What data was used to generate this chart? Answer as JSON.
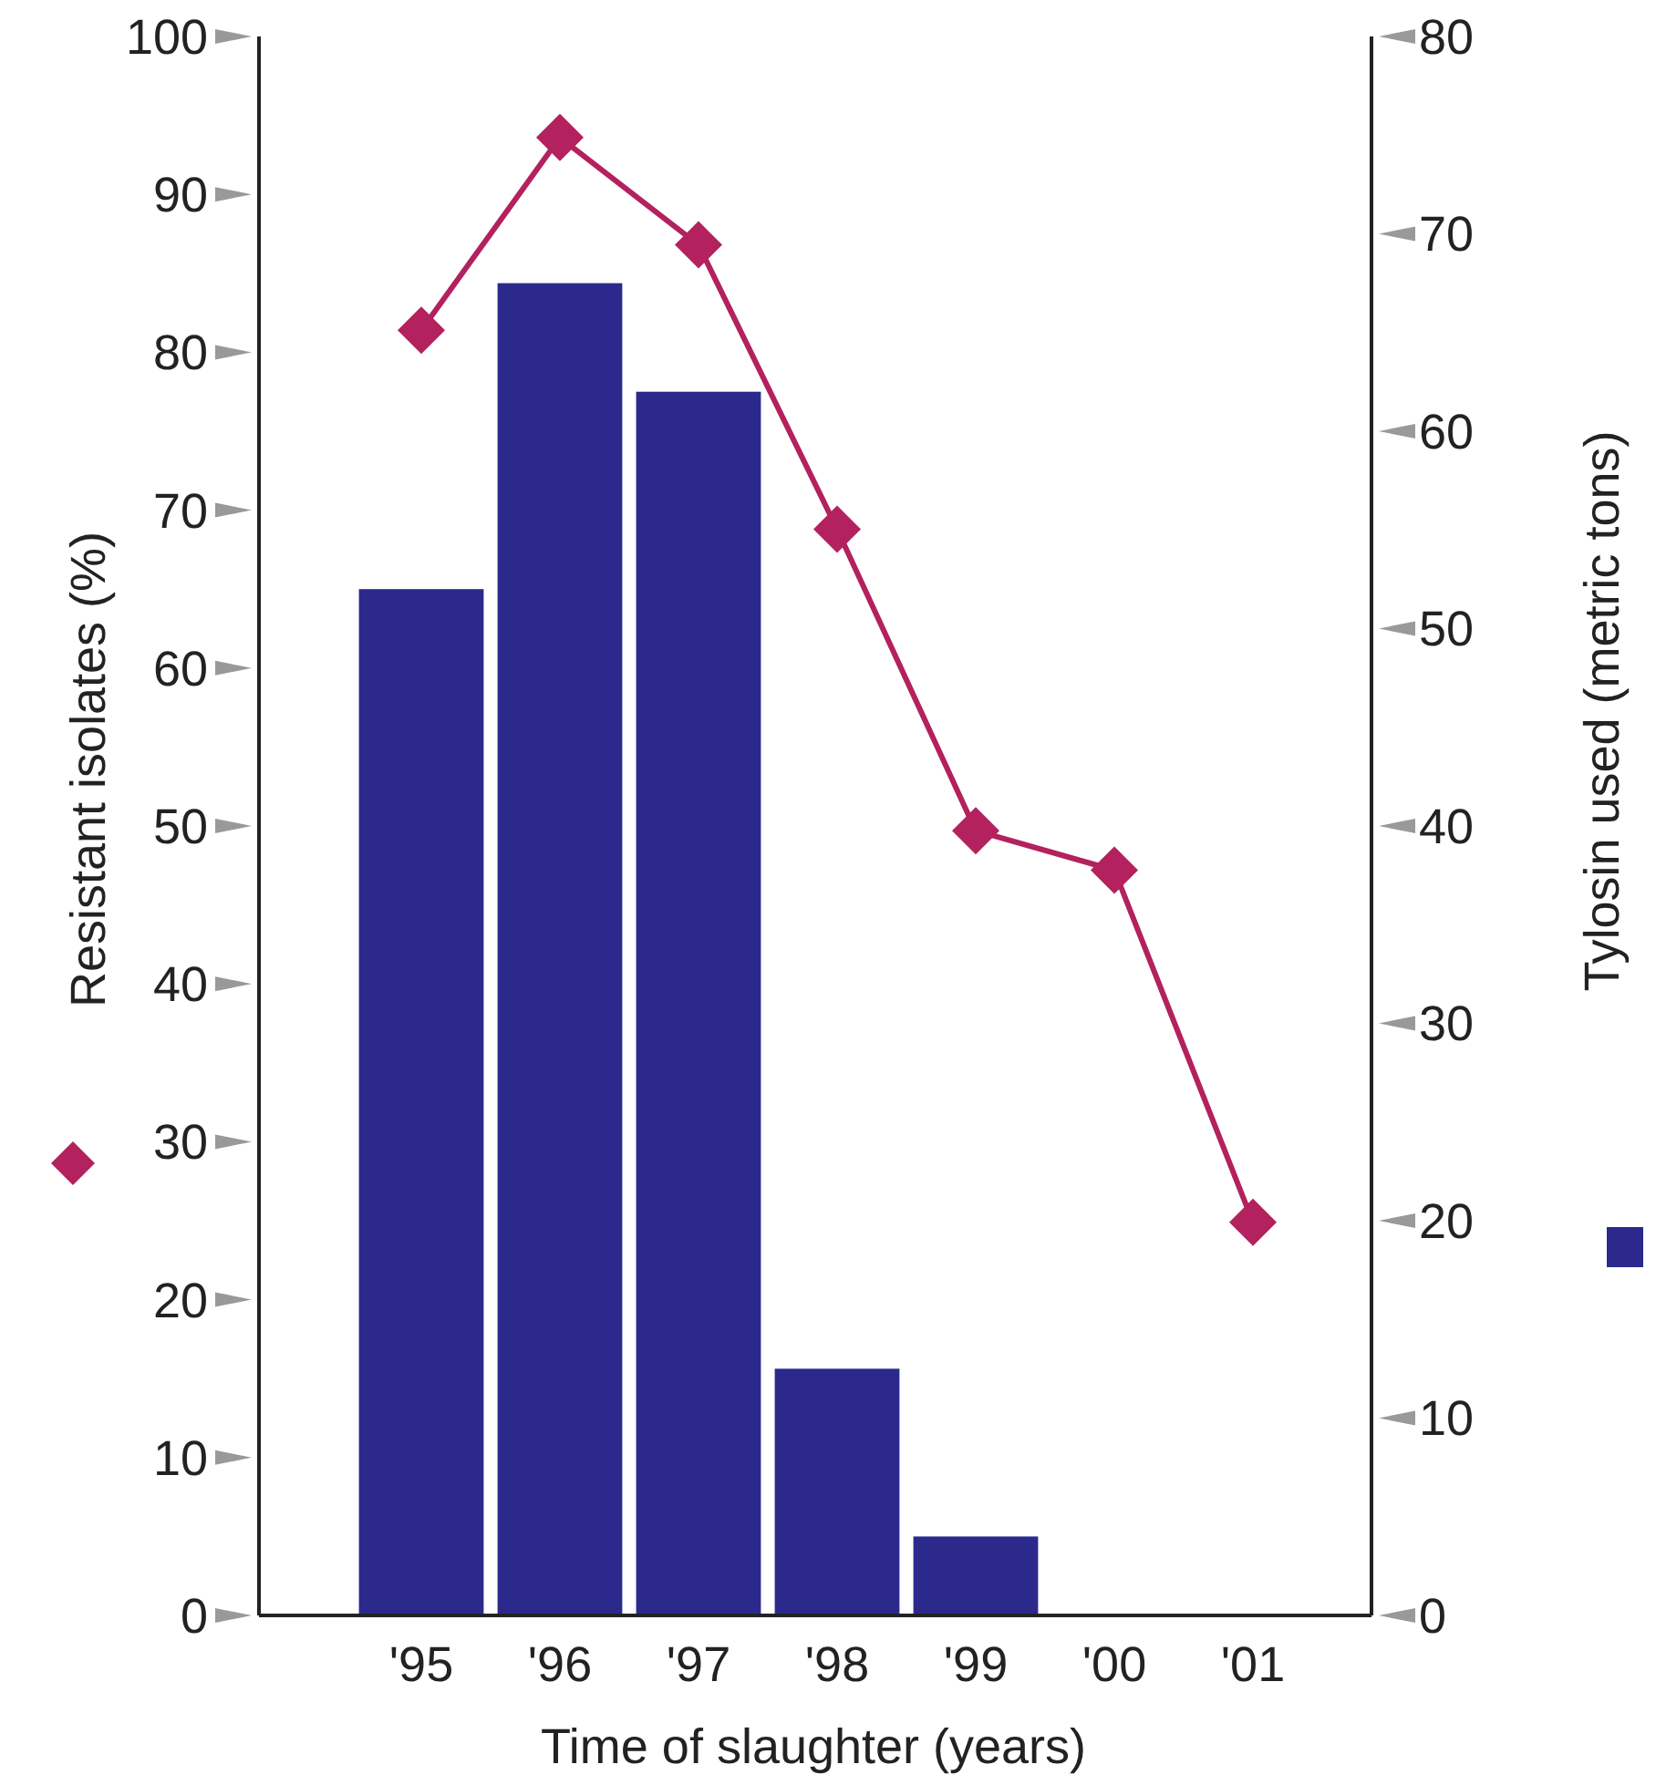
{
  "chart_data": {
    "type": "bar",
    "xlabel": "Time of slaughter (years)",
    "ylabel": "Resistant isolates (%)",
    "y2label": "Tylosin used (metric tons)",
    "categories": [
      "'95",
      "'96",
      "'97",
      "'98",
      "'99",
      "'00",
      "'01"
    ],
    "series": [
      {
        "axis": "y2",
        "color": "#2b2a8c",
        "values": [
          52,
          67.5,
          62,
          12.5,
          4,
          null,
          null
        ]
      },
      {
        "type": "line",
        "axis": "y",
        "color": "#b3215e",
        "marker": "diamond",
        "values": [
          81.4,
          93.6,
          86.8,
          68.8,
          49.7,
          47.2,
          24.9
        ]
      }
    ],
    "ylim": [
      0,
      100
    ],
    "yticks": [
      0,
      10,
      20,
      30,
      40,
      50,
      60,
      70,
      80,
      90,
      100
    ],
    "y2lim": [
      0,
      80
    ],
    "y2ticks": [
      0,
      10,
      20,
      30,
      40,
      50,
      60,
      70,
      80
    ],
    "grid": false
  }
}
